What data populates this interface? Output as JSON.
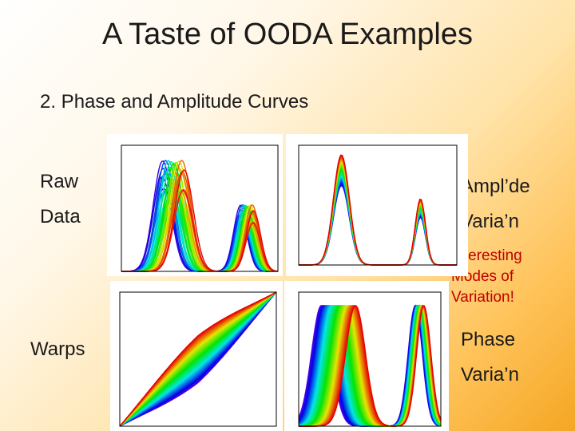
{
  "slide": {
    "title": "A Taste of OODA Examples",
    "subtitle": "2.  Phase and Amplitude Curves"
  },
  "labels": {
    "raw_line1": "Raw",
    "raw_line2": "Data",
    "ampl_line1": "Ampl’de",
    "ampl_line2": "Varia’n",
    "note_line1": "Interesting",
    "note_line2": "Modes of",
    "note_line3": "Variation!",
    "warps": "Warps",
    "phase_line1": "Phase",
    "phase_line2": "Varia’n"
  },
  "panels": {
    "raw_data": "plot",
    "amplitude_variation": "plot",
    "warps": "plot",
    "phase_variation": "plot"
  }
}
